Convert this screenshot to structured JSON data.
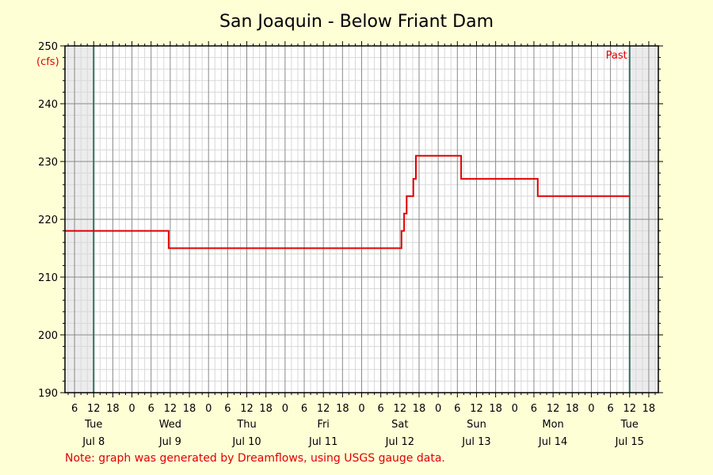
{
  "chart_data": {
    "type": "line",
    "title": "San Joaquin - Below Friant Dam",
    "y_unit": "(cfs)",
    "ylim": [
      190,
      250
    ],
    "y_ticks": [
      190,
      200,
      210,
      220,
      230,
      240,
      250
    ],
    "x_unit": "hours from Jul 8 00:00",
    "xlim": [
      3,
      189
    ],
    "x_tick_labels": [
      "6",
      "12",
      "18",
      "0",
      "6",
      "12",
      "18",
      "0",
      "6",
      "12",
      "18",
      "0",
      "6",
      "12",
      "18",
      "0",
      "6",
      "12",
      "18",
      "0",
      "6",
      "12",
      "18",
      "0",
      "6",
      "12",
      "18",
      "0",
      "6",
      "12",
      "18"
    ],
    "day_labels": [
      {
        "day": "Tue",
        "date": "Jul 8"
      },
      {
        "day": "Wed",
        "date": "Jul 9"
      },
      {
        "day": "Thu",
        "date": "Jul 10"
      },
      {
        "day": "Fri",
        "date": "Jul 11"
      },
      {
        "day": "Sat",
        "date": "Jul 12"
      },
      {
        "day": "Sun",
        "date": "Jul 13"
      },
      {
        "day": "Mon",
        "date": "Jul 14"
      },
      {
        "day": "Tue",
        "date": "Jul 15"
      }
    ],
    "window_markers": [
      12,
      180
    ],
    "marker_label": "Past",
    "grid": true,
    "series": [
      {
        "color": "#e00000",
        "step": true,
        "points": [
          [
            3,
            218
          ],
          [
            35.5,
            218
          ],
          [
            35.5,
            215
          ],
          [
            108.5,
            215
          ],
          [
            108.5,
            218
          ],
          [
            109.3,
            218
          ],
          [
            109.3,
            221
          ],
          [
            110.1,
            221
          ],
          [
            110.1,
            224
          ],
          [
            112.2,
            224
          ],
          [
            112.2,
            227
          ],
          [
            113,
            227
          ],
          [
            113,
            231
          ],
          [
            127.2,
            231
          ],
          [
            127.2,
            227
          ],
          [
            151.2,
            227
          ],
          [
            151.2,
            224
          ],
          [
            180,
            224
          ]
        ]
      }
    ]
  },
  "footer": {
    "note": "Note: graph was generated by Dreamflows, using USGS gauge data."
  }
}
